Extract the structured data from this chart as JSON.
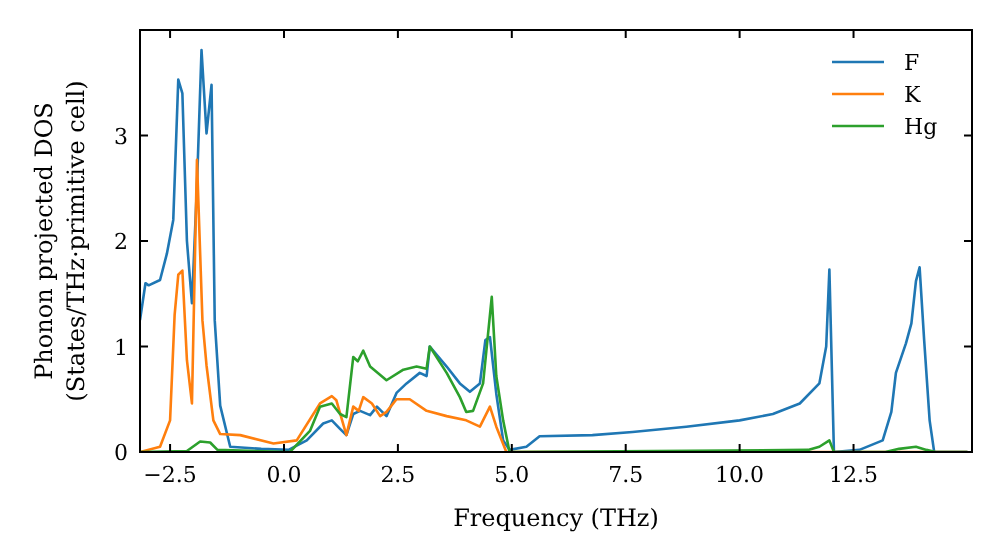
{
  "chart_data": {
    "type": "line",
    "xlabel": "Frequency (THz)",
    "ylabel": "Phonon projected DOS\n(States/THz·primitive cell)",
    "xlim": [
      -3.16,
      15.1
    ],
    "ylim": [
      0,
      4.0
    ],
    "xticks": [
      {
        "value": -2.5,
        "label": "−2.5"
      },
      {
        "value": 0,
        "label": "0.0"
      },
      {
        "value": 2.5,
        "label": "2.5"
      },
      {
        "value": 5,
        "label": "5.0"
      },
      {
        "value": 7.5,
        "label": "7.5"
      },
      {
        "value": 10,
        "label": "10.0"
      },
      {
        "value": 12.5,
        "label": "12.5"
      }
    ],
    "yticks": [
      0,
      1,
      2,
      3
    ],
    "legend": "top right",
    "grid": false,
    "series": [
      {
        "name": "F",
        "color": "#1f77b4",
        "x": [
          -3.16,
          -3.04,
          -2.97,
          -2.72,
          -2.57,
          -2.43,
          -2.32,
          -2.23,
          -2.13,
          -2.02,
          -1.91,
          -1.81,
          -1.7,
          -1.59,
          -1.52,
          -1.4,
          -1.18,
          -0.5,
          0.1,
          0.5,
          0.86,
          1.05,
          1.23,
          1.37,
          1.52,
          1.67,
          1.89,
          2.04,
          2.25,
          2.47,
          2.69,
          2.98,
          3.13,
          3.2,
          3.57,
          3.86,
          4.08,
          4.3,
          4.42,
          4.52,
          4.66,
          4.81,
          4.95,
          5.32,
          5.61,
          6.77,
          7.65,
          8.83,
          10.0,
          10.73,
          11.32,
          11.75,
          11.9,
          11.97,
          12.07,
          12.63,
          13.14,
          13.33,
          13.43,
          13.65,
          13.77,
          13.87,
          13.95,
          14.05,
          14.17,
          14.27,
          15.0
        ],
        "values": [
          1.25,
          1.6,
          1.58,
          1.63,
          1.88,
          2.2,
          3.53,
          3.4,
          2.0,
          1.41,
          2.52,
          3.81,
          3.02,
          3.48,
          1.25,
          0.44,
          0.05,
          0.03,
          0.02,
          0.11,
          0.27,
          0.3,
          0.22,
          0.16,
          0.36,
          0.39,
          0.35,
          0.43,
          0.34,
          0.56,
          0.65,
          0.75,
          0.72,
          1.0,
          0.81,
          0.65,
          0.57,
          0.65,
          1.06,
          1.09,
          0.55,
          0.11,
          0.02,
          0.05,
          0.15,
          0.16,
          0.19,
          0.24,
          0.3,
          0.36,
          0.46,
          0.65,
          1.0,
          1.73,
          0.0,
          0.02,
          0.11,
          0.38,
          0.75,
          1.03,
          1.22,
          1.62,
          1.75,
          1.06,
          0.3,
          0.0,
          0.0
        ]
      },
      {
        "name": "K",
        "color": "#ff7f0e",
        "x": [
          -3.16,
          -2.72,
          -2.5,
          -2.4,
          -2.32,
          -2.23,
          -2.13,
          -2.02,
          -1.91,
          -1.79,
          -1.7,
          -1.55,
          -1.4,
          -0.96,
          -0.23,
          0.28,
          0.79,
          1.05,
          1.15,
          1.37,
          1.52,
          1.64,
          1.74,
          1.93,
          2.11,
          2.25,
          2.47,
          2.76,
          3.13,
          3.57,
          4.0,
          4.3,
          4.52,
          4.66,
          4.88,
          15.0
        ],
        "values": [
          0.0,
          0.05,
          0.3,
          1.3,
          1.68,
          1.72,
          0.87,
          0.46,
          2.77,
          1.25,
          0.82,
          0.3,
          0.17,
          0.16,
          0.08,
          0.11,
          0.46,
          0.53,
          0.49,
          0.16,
          0.43,
          0.39,
          0.52,
          0.46,
          0.34,
          0.38,
          0.5,
          0.5,
          0.39,
          0.34,
          0.3,
          0.24,
          0.43,
          0.24,
          0.0,
          0.0
        ]
      },
      {
        "name": "Hg",
        "color": "#2ca02c",
        "x": [
          -3.16,
          -2.13,
          -1.84,
          -1.62,
          -1.46,
          0.13,
          0.57,
          0.79,
          1.05,
          1.23,
          1.37,
          1.52,
          1.62,
          1.74,
          1.89,
          2.25,
          2.62,
          2.91,
          3.13,
          3.2,
          3.57,
          3.86,
          4.0,
          4.15,
          4.37,
          4.56,
          4.66,
          4.81,
          4.95,
          11.5,
          11.75,
          11.97,
          12.07,
          13.2,
          13.5,
          13.87,
          14.1,
          14.3,
          15.0
        ],
        "values": [
          0.0,
          0.01,
          0.1,
          0.09,
          0.02,
          0.0,
          0.2,
          0.43,
          0.46,
          0.36,
          0.33,
          0.9,
          0.86,
          0.96,
          0.81,
          0.68,
          0.78,
          0.81,
          0.79,
          1.0,
          0.75,
          0.52,
          0.38,
          0.39,
          0.65,
          1.47,
          0.72,
          0.3,
          0.0,
          0.02,
          0.05,
          0.11,
          0.0,
          0.0,
          0.03,
          0.05,
          0.02,
          0.0,
          0.0
        ]
      }
    ]
  }
}
